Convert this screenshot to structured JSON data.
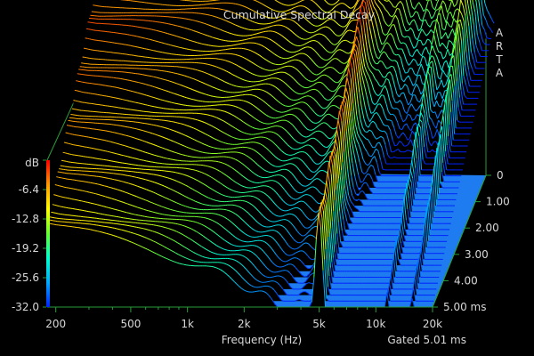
{
  "chart_data": {
    "type": "waterfall",
    "title": "Cumulative Spectral Decay",
    "brand": "ARTA",
    "xlabel": "Frequency (Hz)",
    "zlabel": "dB",
    "footnote": "Gated 5.01 ms",
    "x_scale": "log",
    "xlim": [
      180,
      20000
    ],
    "x_ticks": [
      200,
      500,
      1000,
      2000,
      5000,
      10000,
      20000
    ],
    "x_tick_labels": [
      "200",
      "500",
      "1k",
      "2k",
      "5k",
      "10k",
      "20k"
    ],
    "time_ticks": [
      0,
      1,
      2,
      3,
      4,
      5
    ],
    "time_tick_labels": [
      "0",
      "1.00",
      "2.00",
      "3.00",
      "4.00",
      "5.00 ms"
    ],
    "zlim": [
      -32,
      0
    ],
    "z_ticks": [
      0,
      -6.4,
      -12.8,
      -19.2,
      -25.6,
      -32
    ],
    "z_tick_labels": [
      "",
      "-6.4",
      "-12.8",
      "-19.2",
      "-25.6",
      "-32.0"
    ],
    "gate_ms": 5.01,
    "num_slices": 48,
    "initial_response": {
      "freq_hz": [
        180,
        200,
        300,
        400,
        500,
        700,
        1000,
        1500,
        2000,
        2500,
        3000,
        3500,
        4000,
        4500,
        5000,
        5500,
        6000,
        7000,
        8000,
        9000,
        10000,
        11000,
        12000,
        13000,
        14000,
        15000,
        16000,
        17000,
        18000,
        20000
      ],
      "level_db": [
        -1.5,
        -1.8,
        -2.0,
        -2.4,
        -2.8,
        -3.3,
        -3.8,
        -4.3,
        -4.8,
        -5.2,
        -5.7,
        -5.5,
        -4.0,
        -1.5,
        0.0,
        -3.0,
        -8.0,
        -6.5,
        -12.0,
        -13.0,
        -11.0,
        -13.0,
        -11.0,
        -8.0,
        -7.0,
        -5.5,
        -8.0,
        -17.0,
        -26.0,
        -31.0
      ]
    },
    "colors": {
      "background": "#000000",
      "box": "#2a9d3a",
      "floor": "#1e7bf0",
      "text": "#d8d8d8"
    },
    "colorbar": [
      "#0022ff",
      "#00aaff",
      "#00ffcc",
      "#66ff33",
      "#ffff00",
      "#ff9900",
      "#ff0000"
    ]
  }
}
